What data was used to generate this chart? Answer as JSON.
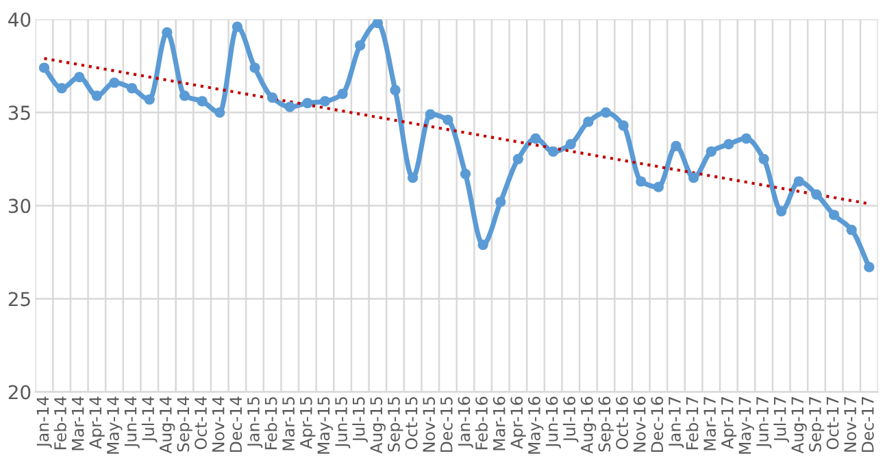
{
  "chart_data": {
    "type": "line",
    "categories": [
      "Jan-14",
      "Feb-14",
      "Mar-14",
      "Apr-14",
      "May-14",
      "Jun-14",
      "Jul-14",
      "Aug-14",
      "Sep-14",
      "Oct-14",
      "Nov-14",
      "Dec-14",
      "Jan-15",
      "Feb-15",
      "Mar-15",
      "Apr-15",
      "May-15",
      "Jun-15",
      "Jul-15",
      "Aug-15",
      "Sep-15",
      "Oct-15",
      "Nov-15",
      "Dec-15",
      "Jan-16",
      "Feb-16",
      "Mar-16",
      "Apr-16",
      "May-16",
      "Jun-16",
      "Jul-16",
      "Aug-16",
      "Sep-16",
      "Oct-16",
      "Nov-16",
      "Dec-16",
      "Jan-17",
      "Feb-17",
      "Mar-17",
      "Apr-17",
      "May-17",
      "Jun-17",
      "Jul-17",
      "Aug-17",
      "Sep-17",
      "Oct-17",
      "Nov-17",
      "Dec-17"
    ],
    "series": [
      {
        "color": "#5b9bd5",
        "marker": "circle",
        "line_style": "solid",
        "values": [
          37.4,
          36.3,
          36.9,
          35.9,
          36.6,
          36.3,
          35.7,
          39.3,
          35.9,
          35.6,
          35.0,
          39.6,
          37.4,
          35.8,
          35.3,
          35.5,
          35.6,
          36.0,
          38.6,
          39.8,
          36.2,
          31.5,
          34.9,
          34.6,
          31.7,
          27.9,
          30.2,
          32.5,
          33.6,
          32.9,
          33.3,
          34.5,
          35.0,
          34.3,
          31.3,
          31.0,
          33.2,
          31.5,
          32.9,
          33.3,
          33.6,
          32.5,
          29.7,
          31.3,
          30.6,
          29.5,
          28.7,
          26.7
        ]
      },
      {
        "color": "#c00000",
        "marker": "none",
        "line_style": "dotted",
        "values": [
          37.9,
          null,
          null,
          null,
          null,
          null,
          null,
          null,
          null,
          null,
          null,
          null,
          null,
          null,
          null,
          null,
          null,
          null,
          null,
          null,
          null,
          null,
          null,
          null,
          null,
          null,
          null,
          null,
          null,
          null,
          null,
          null,
          null,
          null,
          null,
          null,
          null,
          null,
          null,
          null,
          null,
          null,
          null,
          null,
          null,
          null,
          null,
          30.1
        ]
      }
    ],
    "ylim": [
      20,
      40
    ],
    "yticks": [
      20,
      25,
      30,
      35,
      40
    ],
    "grid": true,
    "legend": false
  }
}
